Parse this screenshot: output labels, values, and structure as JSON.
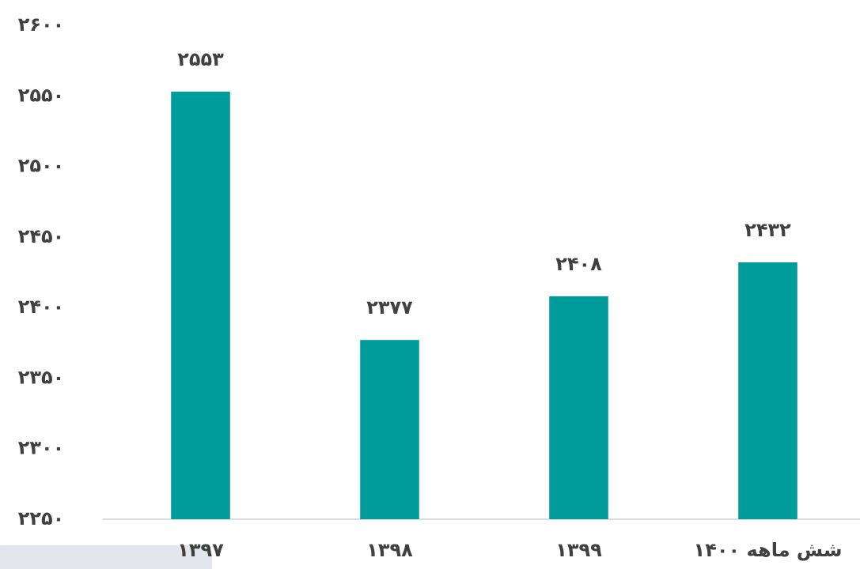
{
  "chart_data": {
    "type": "bar",
    "categories": [
      "۱۳۹۷",
      "۱۳۹۸",
      "۱۳۹۹",
      "شش ماهه ۱۴۰۰"
    ],
    "values": [
      2553,
      2377,
      2408,
      2432
    ],
    "value_labels": [
      "۲۵۵۳",
      "۲۳۷۷",
      "۲۴۰۸",
      "۲۴۳۲"
    ],
    "color": "#009b9b",
    "ylim": [
      2250,
      2600
    ],
    "yticks": [
      {
        "value": 2250,
        "label": "۲۲۵۰"
      },
      {
        "value": 2300,
        "label": "۲۳۰۰"
      },
      {
        "value": 2350,
        "label": "۲۳۵۰"
      },
      {
        "value": 2400,
        "label": "۲۴۰۰"
      },
      {
        "value": 2450,
        "label": "۲۴۵۰"
      },
      {
        "value": 2500,
        "label": "۲۵۰۰"
      },
      {
        "value": 2550,
        "label": "۲۵۵۰"
      },
      {
        "value": 2600,
        "label": "۲۶۰۰"
      }
    ],
    "grid": false
  }
}
